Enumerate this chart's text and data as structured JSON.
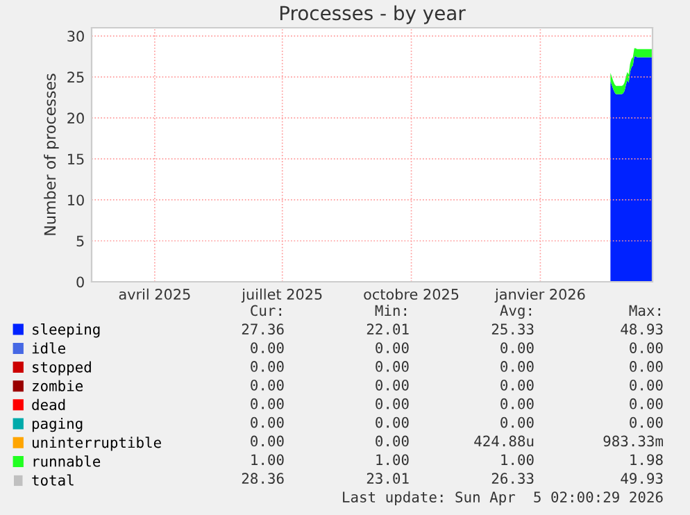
{
  "chart_data": {
    "type": "area",
    "stacked": true,
    "title": "Processes - by year",
    "ylabel": "Number of processes",
    "x": [
      "2026-03-06",
      "2026-03-07",
      "2026-03-08",
      "2026-03-09",
      "2026-03-10",
      "2026-03-11",
      "2026-03-12",
      "2026-03-13",
      "2026-03-14",
      "2026-03-15",
      "2026-03-16",
      "2026-03-17",
      "2026-03-18",
      "2026-03-19",
      "2026-03-20",
      "2026-03-21",
      "2026-03-22",
      "2026-03-23",
      "2026-03-24",
      "2026-03-25",
      "2026-03-26",
      "2026-03-27",
      "2026-03-28",
      "2026-03-29",
      "2026-03-30",
      "2026-03-31",
      "2026-04-01",
      "2026-04-02",
      "2026-04-03",
      "2026-04-04",
      "2026-04-05"
    ],
    "xlim": [
      "2025-03-01",
      "2026-04-05"
    ],
    "xticks": [
      {
        "value": "2025-04-15",
        "label": "avril 2025"
      },
      {
        "value": "2025-07-15",
        "label": "juillet 2025"
      },
      {
        "value": "2025-10-15",
        "label": "octobre 2025"
      },
      {
        "value": "2026-01-15",
        "label": "janvier 2026"
      }
    ],
    "ylim": [
      0,
      31
    ],
    "yticks": [
      0,
      5,
      10,
      15,
      20,
      25,
      30
    ],
    "grid": true,
    "legend": "bottom",
    "series": [
      {
        "name": "sleeping",
        "color": "#0022ff",
        "values": [
          24.5,
          24.0,
          23.5,
          23.1,
          22.9,
          22.9,
          22.9,
          22.9,
          22.9,
          23.0,
          23.3,
          24.0,
          24.6,
          24.3,
          25.6,
          26.2,
          26.4,
          27.5,
          27.5,
          27.4,
          27.4,
          27.4,
          27.4,
          27.4,
          27.4,
          27.4,
          27.4,
          27.4,
          27.4,
          27.4,
          27.4
        ]
      },
      {
        "name": "idle",
        "color": "#4668e4",
        "values": [
          null,
          null,
          null,
          null,
          null,
          null,
          null,
          null,
          null,
          null,
          null,
          null,
          null,
          null,
          null,
          null,
          null,
          null,
          null,
          null,
          null,
          null,
          null,
          null,
          null,
          null,
          null,
          null,
          null,
          null,
          null
        ]
      },
      {
        "name": "stopped",
        "color": "#cc0000",
        "values": [
          null,
          null,
          null,
          null,
          null,
          null,
          null,
          null,
          null,
          null,
          null,
          null,
          null,
          null,
          null,
          null,
          null,
          null,
          null,
          null,
          null,
          null,
          null,
          null,
          null,
          null,
          null,
          null,
          null,
          null,
          null
        ]
      },
      {
        "name": "zombie",
        "color": "#990000",
        "values": [
          null,
          null,
          null,
          null,
          null,
          null,
          null,
          null,
          null,
          null,
          null,
          null,
          null,
          null,
          null,
          null,
          null,
          null,
          null,
          null,
          null,
          null,
          null,
          null,
          null,
          null,
          null,
          null,
          null,
          null,
          null
        ]
      },
      {
        "name": "dead",
        "color": "#ff0000",
        "values": [
          null,
          null,
          null,
          null,
          null,
          null,
          null,
          null,
          null,
          null,
          null,
          null,
          null,
          null,
          null,
          null,
          null,
          null,
          null,
          null,
          null,
          null,
          null,
          null,
          null,
          null,
          null,
          null,
          null,
          null,
          null
        ]
      },
      {
        "name": "paging",
        "color": "#00aaaa",
        "values": [
          null,
          null,
          null,
          null,
          null,
          null,
          null,
          null,
          null,
          null,
          null,
          null,
          null,
          null,
          null,
          null,
          null,
          null,
          null,
          null,
          null,
          null,
          null,
          null,
          null,
          null,
          null,
          null,
          null,
          null,
          null
        ]
      },
      {
        "name": "uninterruptible",
        "color": "#ffa500",
        "values": [
          null,
          null,
          null,
          null,
          null,
          null,
          null,
          null,
          null,
          null,
          null,
          null,
          null,
          null,
          null,
          null,
          null,
          null,
          null,
          null,
          null,
          null,
          null,
          null,
          null,
          null,
          null,
          null,
          null,
          null,
          null
        ]
      },
      {
        "name": "runnable",
        "color": "#22ff22",
        "values": [
          1.0,
          1.0,
          1.0,
          1.0,
          1.0,
          1.0,
          1.0,
          1.0,
          1.0,
          1.0,
          1.0,
          1.0,
          1.0,
          1.0,
          1.0,
          1.0,
          1.0,
          1.0,
          1.0,
          1.0,
          1.0,
          1.0,
          1.0,
          1.0,
          1.0,
          1.0,
          1.0,
          1.0,
          1.0,
          1.0,
          1.0
        ]
      },
      {
        "name": "total",
        "type": "line",
        "color": "#c0c0c0",
        "values": [
          null,
          null,
          null,
          null,
          null,
          null,
          null,
          null,
          null,
          null,
          null,
          null,
          null,
          null,
          null,
          null,
          null,
          null,
          null,
          null,
          null,
          null,
          null,
          null,
          null,
          null,
          null,
          null,
          null,
          null,
          null
        ]
      }
    ],
    "annotations": [
      "Cur:",
      "Min:",
      "Avg:",
      "Max:",
      "27.36",
      "22.01",
      "25.33",
      "48.93",
      "0.00",
      "0.00",
      "0.00",
      "0.00",
      "0.00",
      "0.00",
      "0.00",
      "0.00",
      "0.00",
      "0.00",
      "0.00",
      "0.00",
      "0.00",
      "0.00",
      "0.00",
      "0.00",
      "0.00",
      "0.00",
      "0.00",
      "0.00",
      "0.00",
      "0.00",
      "424.88u",
      "983.33m",
      "1.00",
      "1.00",
      "1.00",
      "1.98",
      "28.36",
      "23.01",
      "26.33",
      "49.93",
      "Last update: Sun Apr  5 02:00:29 2026"
    ]
  }
}
